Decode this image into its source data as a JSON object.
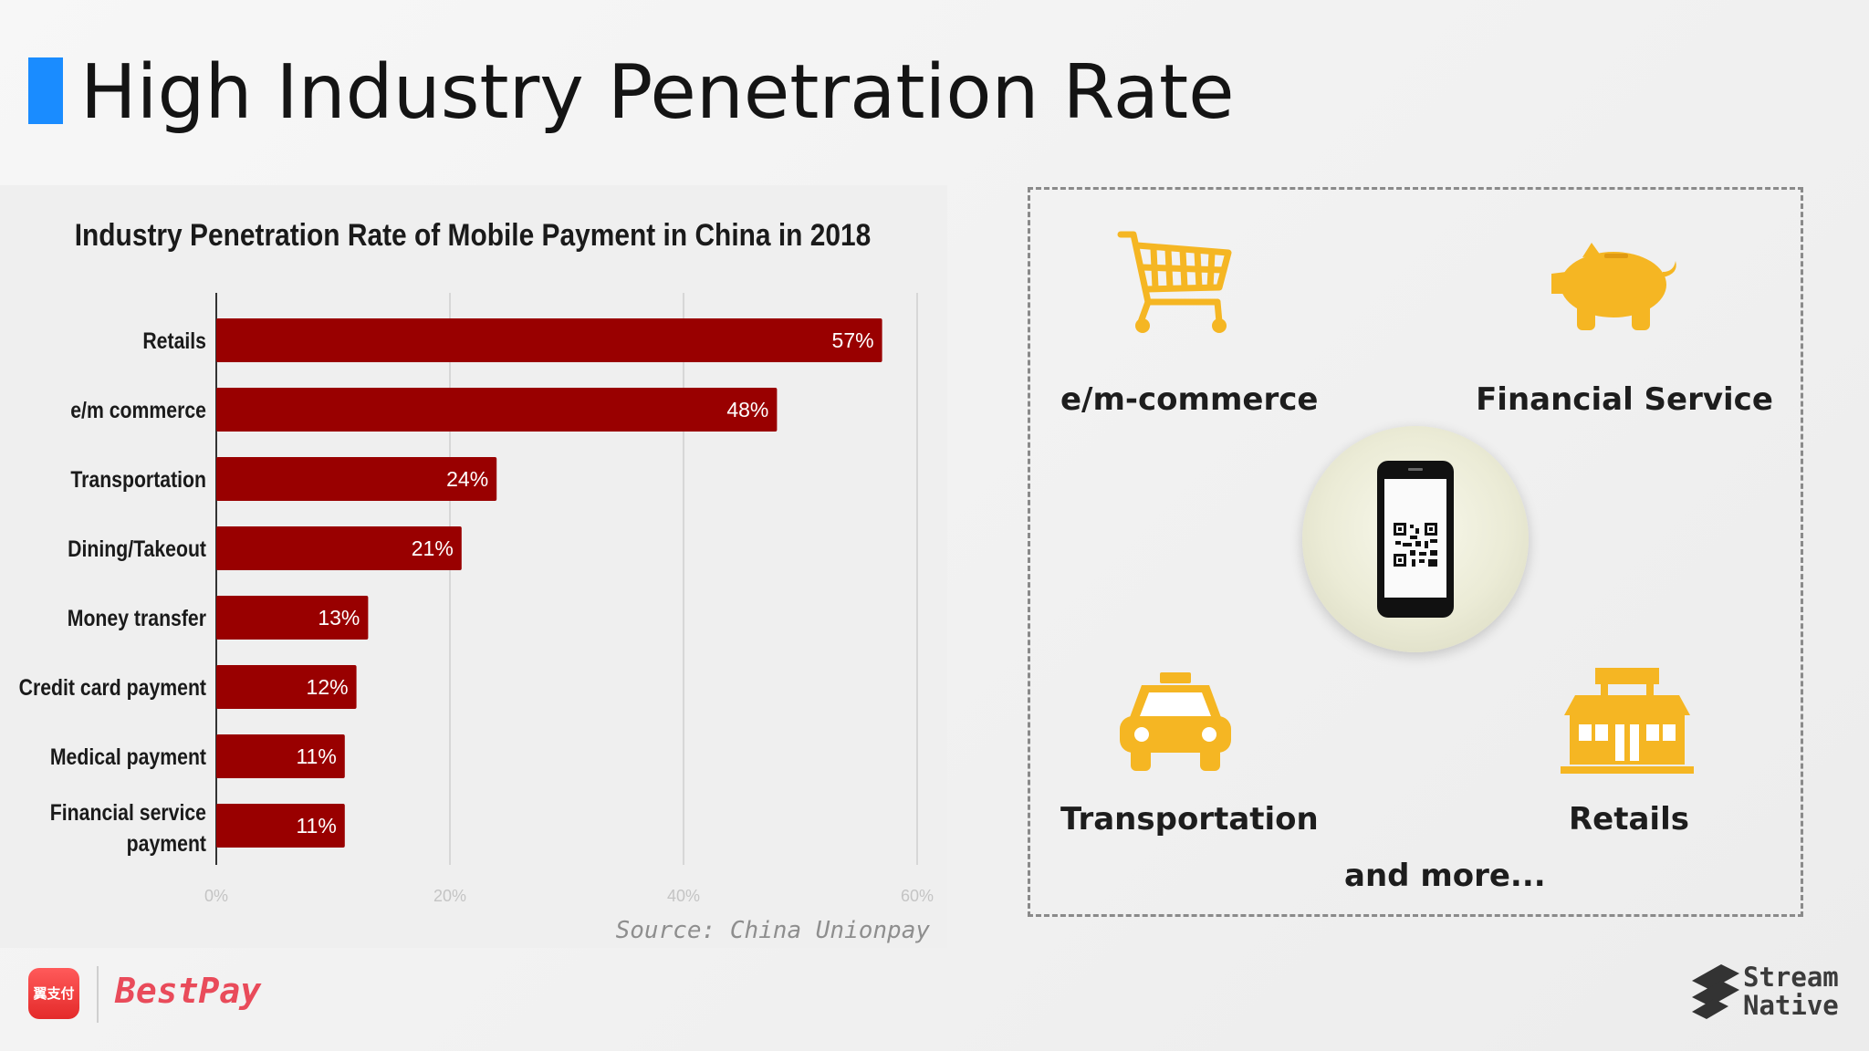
{
  "slide": {
    "title": "High Industry Penetration Rate",
    "accent_color": "#1a8cff"
  },
  "chart_data": {
    "type": "bar",
    "orientation": "horizontal",
    "title": "Industry Penetration Rate of Mobile Payment in China in 2018",
    "categories": [
      "Retails",
      "e/m commerce",
      "Transportation",
      "Dining/Takeout",
      "Money transfer",
      "Credit card payment",
      "Medical payment",
      "Financial service payment"
    ],
    "values": [
      57,
      48,
      24,
      21,
      13,
      12,
      11,
      11
    ],
    "value_labels": [
      "57%",
      "48%",
      "24%",
      "21%",
      "13%",
      "12%",
      "11%",
      "11%"
    ],
    "x_ticks": [
      "0%",
      "20%",
      "40%",
      "60%"
    ],
    "xlim": [
      0,
      60
    ],
    "xlabel": "",
    "ylabel": "",
    "grid": true,
    "bar_color": "#990000",
    "source": "Source: China Unionpay"
  },
  "use_cases": {
    "items": [
      {
        "label": "e/m-commerce",
        "icon": "shopping-cart-icon"
      },
      {
        "label": "Financial Service",
        "icon": "piggy-bank-icon"
      },
      {
        "label": "Transportation",
        "icon": "taxi-icon"
      },
      {
        "label": "Retails",
        "icon": "storefront-icon"
      }
    ],
    "center_icon": "mobile-qr-code-icon",
    "more_label": "and more...",
    "icon_color": "#f5b623"
  },
  "footer": {
    "bestpay_logo_text": "翼支付",
    "bestpay_wordmark": "BestPay",
    "streamnative_line1": "Stream",
    "streamnative_line2": "Native"
  }
}
